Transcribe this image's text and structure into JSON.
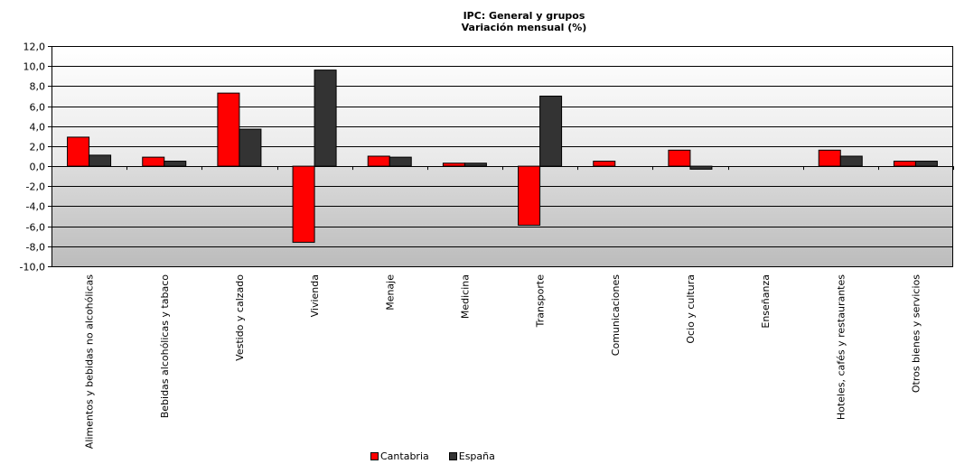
{
  "chart_data": {
    "type": "bar",
    "title": "IPC: General  y grupos",
    "subtitle": "Variación  mensual  (%)",
    "xlabel": "",
    "ylabel": "",
    "ylim": [
      -10,
      12
    ],
    "yticks": [
      12,
      10,
      8,
      6,
      4,
      2,
      0,
      -2,
      -4,
      -6,
      -8,
      -10
    ],
    "ytick_labels": [
      "12,0",
      "10,0",
      "8,0",
      "6,0",
      "4,0",
      "2,0",
      "0,0",
      "-2,0",
      "-4,0",
      "-6,0",
      "-8,0",
      "-10,0"
    ],
    "categories": [
      "Alimentos y bebidas no alcohólicas",
      "Bebidas alcohólicas y tabaco",
      "Vestido y calzado",
      "Vivienda",
      "Menaje",
      "Medicina",
      "Transporte",
      "Comunicaciones",
      "Ocio y cultura",
      "Enseñanza",
      "Hoteles, cafés y restaurantes",
      "Otros bienes y servicios"
    ],
    "series": [
      {
        "name": "Cantabria",
        "color": "#ff0000",
        "values": [
          2.9,
          0.9,
          7.3,
          -7.6,
          1.0,
          0.3,
          -5.9,
          0.5,
          1.6,
          0.0,
          1.6,
          0.5
        ]
      },
      {
        "name": "España",
        "color": "#333333",
        "values": [
          1.1,
          0.5,
          3.7,
          9.6,
          0.9,
          0.3,
          7.0,
          0.0,
          -0.3,
          0.0,
          1.0,
          0.5
        ]
      }
    ],
    "grid": true,
    "legend_position": "bottom",
    "plot_background": {
      "upper_gradient": [
        "#ffffff",
        "#e8e8e8"
      ],
      "lower_gradient": [
        "#dcdcdc",
        "#bcbcbc"
      ]
    }
  }
}
